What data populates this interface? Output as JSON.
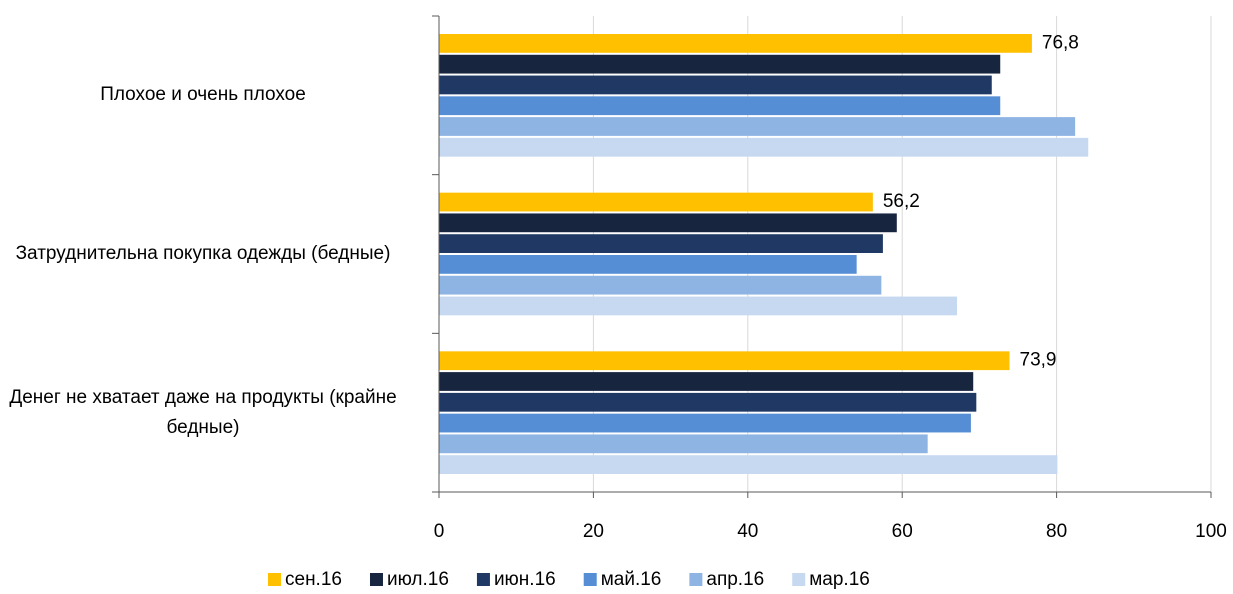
{
  "chart_data": {
    "type": "hbar",
    "categories": [
      "Плохое и очень плохое",
      "Затруднительна покупка одежды (бедные)",
      "Денег не хватает даже на продукты (крайне бедные)"
    ],
    "series": [
      {
        "name": "сен.16",
        "color": "#FFC000",
        "values": [
          76.8,
          56.2,
          73.9
        ],
        "value_labels": [
          "76,8",
          "56,2",
          "73,9"
        ]
      },
      {
        "name": "июл.16",
        "color": "#17253F",
        "values": [
          72.7,
          59.3,
          69.2
        ]
      },
      {
        "name": "июн.16",
        "color": "#1F3864",
        "values": [
          71.6,
          57.5,
          69.6
        ]
      },
      {
        "name": "май.16",
        "color": "#558ED5",
        "values": [
          72.7,
          54.1,
          68.9
        ]
      },
      {
        "name": "апр.16",
        "color": "#8EB4E3",
        "values": [
          82.4,
          57.3,
          63.3
        ]
      },
      {
        "name": "мар.16",
        "color": "#C6D9F1",
        "values": [
          84.1,
          67.1,
          80.1
        ]
      }
    ],
    "xlim": [
      0,
      100
    ],
    "xticks": [
      0,
      20,
      40,
      60,
      80,
      100
    ],
    "grid": true,
    "legend": "bottom"
  }
}
